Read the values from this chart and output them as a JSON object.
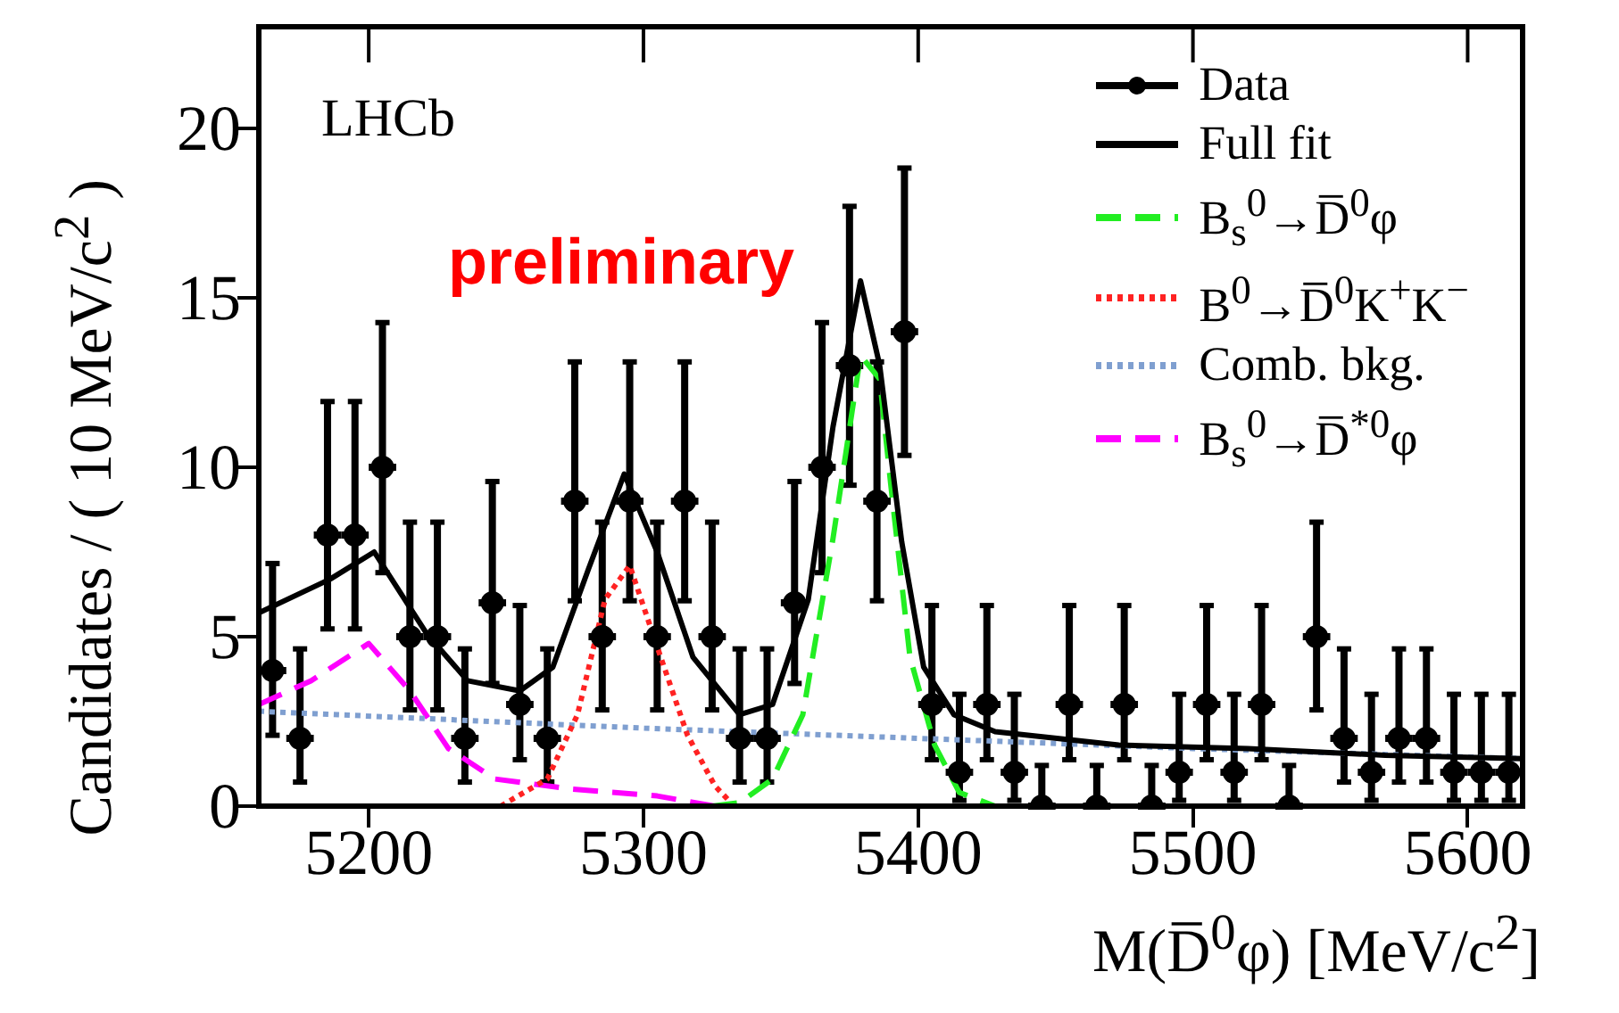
{
  "chart_data": {
    "type": "scatter",
    "xlabel": "M(D̅$^{0}$φ) [MeV/c$^{2}$]",
    "ylabel": "Candidates / ( 10 MeV/c$^{2}$ )",
    "annotations": [
      "LHCb",
      "preliminary"
    ],
    "xlim": [
      5160,
      5620
    ],
    "xticks": [
      5200,
      5300,
      5400,
      5500,
      5600
    ],
    "ylim": [
      0,
      23
    ],
    "yticks": [
      0,
      5,
      10,
      15,
      20
    ],
    "grid": false,
    "legend": "top right",
    "series": [
      {
        "name": "Data",
        "type": "scatter",
        "color": "#000000",
        "marker": "circle",
        "x": [
          5165,
          5175,
          5185,
          5195,
          5205,
          5215,
          5225,
          5235,
          5245,
          5255,
          5265,
          5275,
          5285,
          5295,
          5305,
          5315,
          5325,
          5335,
          5345,
          5355,
          5365,
          5375,
          5385,
          5395,
          5405,
          5415,
          5425,
          5435,
          5445,
          5455,
          5465,
          5475,
          5485,
          5495,
          5505,
          5515,
          5525,
          5535,
          5545,
          5555,
          5565,
          5575,
          5585,
          5595,
          5605,
          5615
        ],
        "values": [
          4,
          2,
          8,
          8,
          10,
          5,
          5,
          2,
          6,
          3,
          2,
          9,
          5,
          9,
          5,
          9,
          5,
          2,
          2,
          6,
          10,
          13,
          9,
          14,
          3,
          1,
          3,
          1,
          0,
          3,
          0,
          3,
          0,
          1,
          3,
          1,
          3,
          0,
          5,
          2,
          1,
          2,
          2,
          1,
          1,
          1
        ],
        "errors": [
          [
            2.09,
            7.16
          ],
          [
            0.71,
            4.64
          ],
          [
            5.23,
            11.94
          ],
          [
            5.23,
            11.94
          ],
          [
            6.89,
            14.27
          ],
          [
            2.84,
            8.38
          ],
          [
            2.84,
            8.38
          ],
          [
            0.71,
            4.64
          ],
          [
            3.62,
            9.58
          ],
          [
            1.37,
            5.92
          ],
          [
            0.71,
            4.64
          ],
          [
            6.06,
            13.11
          ],
          [
            2.84,
            8.38
          ],
          [
            6.06,
            13.11
          ],
          [
            2.84,
            8.38
          ],
          [
            6.06,
            13.11
          ],
          [
            2.84,
            8.38
          ],
          [
            0.71,
            4.64
          ],
          [
            0.71,
            4.64
          ],
          [
            3.62,
            9.58
          ],
          [
            6.89,
            14.27
          ],
          [
            9.47,
            17.7
          ],
          [
            6.06,
            13.11
          ],
          [
            10.35,
            18.83
          ],
          [
            1.37,
            5.92
          ],
          [
            0.17,
            3.3
          ],
          [
            1.37,
            5.92
          ],
          [
            0.17,
            3.3
          ],
          [
            0,
            1.2
          ],
          [
            1.37,
            5.92
          ],
          [
            0,
            1.2
          ],
          [
            1.37,
            5.92
          ],
          [
            0,
            1.2
          ],
          [
            0.17,
            3.3
          ],
          [
            1.37,
            5.92
          ],
          [
            0.17,
            3.3
          ],
          [
            1.37,
            5.92
          ],
          [
            0,
            1.2
          ],
          [
            2.84,
            8.38
          ],
          [
            0.71,
            4.64
          ],
          [
            0.17,
            3.3
          ],
          [
            0.71,
            4.64
          ],
          [
            0.71,
            4.64
          ],
          [
            0.17,
            3.3
          ],
          [
            0.17,
            3.3
          ],
          [
            0.17,
            3.3
          ]
        ],
        "xerrors": [
          5,
          5,
          5,
          5,
          5,
          5,
          5,
          5,
          5,
          5,
          5,
          5,
          5,
          5,
          5,
          5,
          5,
          5,
          5,
          5,
          5,
          5,
          5,
          5,
          5,
          5,
          5,
          5,
          5,
          5,
          5,
          5,
          5,
          5,
          5,
          5,
          5,
          5,
          5,
          5,
          5,
          5,
          5,
          5,
          5,
          5
        ]
      },
      {
        "name": "Full fit",
        "type": "line",
        "color": "#000000",
        "line_style": "solid",
        "marker": "none",
        "x": [
          5160,
          5186,
          5202,
          5221,
          5236,
          5255,
          5267,
          5280,
          5293,
          5305,
          5318,
          5335,
          5347,
          5360,
          5369,
          5379,
          5386,
          5394,
          5402,
          5413,
          5428,
          5473,
          5520,
          5570,
          5620
        ],
        "values": [
          5.7,
          6.7,
          7.5,
          5.1,
          3.7,
          3.4,
          4.1,
          7.0,
          9.8,
          7.5,
          4.4,
          2.7,
          3.0,
          6.1,
          11.2,
          15.5,
          13.0,
          7.8,
          4.1,
          2.7,
          2.2,
          1.8,
          1.7,
          1.5,
          1.4
        ]
      },
      {
        "name": "B$_{s}$$^{0}$→D̅$^{0}$φ",
        "type": "line",
        "color": "#22ee22",
        "line_style": "dashed",
        "marker": "none",
        "x": [
          5325,
          5335,
          5347,
          5358,
          5369,
          5379,
          5386,
          5390,
          5397,
          5406,
          5415,
          5428
        ],
        "values": [
          0,
          0.1,
          0.8,
          2.7,
          7.9,
          13.3,
          12.6,
          9.5,
          4.4,
          1.8,
          0.4,
          0
        ]
      },
      {
        "name": "B$^{0}$→D̅$^{0}$K$^{+}$K$^{−}$",
        "type": "line",
        "color": "#ff2222",
        "line_style": "dotted",
        "marker": "none",
        "x": [
          5248,
          5265,
          5276,
          5286,
          5295,
          5305,
          5316,
          5326,
          5333
        ],
        "values": [
          0,
          0.8,
          2.7,
          6.1,
          7.1,
          4.7,
          2.1,
          0.6,
          0
        ]
      },
      {
        "name": "Comb. bkg.",
        "type": "line",
        "color": "#7f9fd0",
        "line_style": "dotted",
        "marker": "none",
        "x": [
          5160,
          5300,
          5400,
          5500,
          5620
        ],
        "values": [
          2.8,
          2.3,
          2.0,
          1.7,
          1.4
        ]
      },
      {
        "name": "B$_{s}$$^{0}$→D̅$^{*0}$φ",
        "type": "line",
        "color": "#ff00ff",
        "line_style": "dashed",
        "marker": "none",
        "x": [
          5160,
          5179,
          5200,
          5215,
          5229,
          5246,
          5274,
          5305,
          5326
        ],
        "values": [
          3.0,
          3.7,
          4.8,
          3.4,
          1.7,
          0.8,
          0.5,
          0.3,
          0
        ]
      }
    ]
  }
}
